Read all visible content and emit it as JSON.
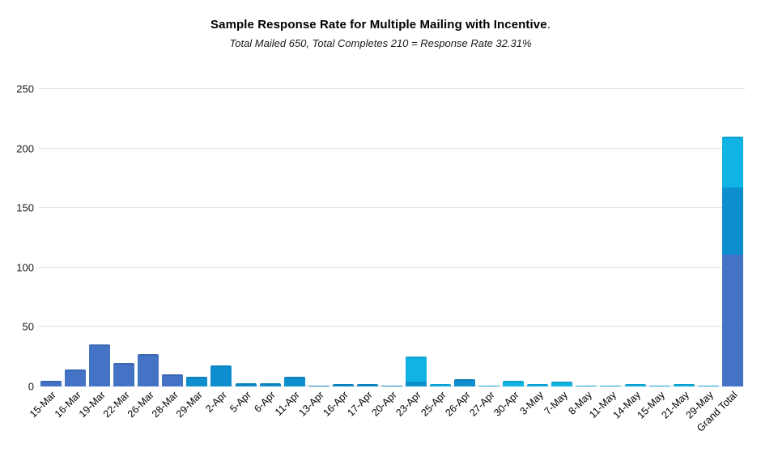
{
  "title": {
    "text": "Sample Response Rate for Multiple Mailing with Incentive",
    "period": "."
  },
  "subtitle": "Total Mailed 650, Total Completes 210 = Response Rate 32.31%",
  "chart_data": {
    "type": "bar",
    "stacked": true,
    "title": "Sample Response Rate for Multiple Mailing with Incentive.",
    "subtitle": "Total Mailed 650, Total Completes 210 = Response Rate 32.31%",
    "xlabel": "",
    "ylabel": "",
    "ylim": [
      0,
      250
    ],
    "yticks": [
      0,
      50,
      100,
      150,
      200,
      250
    ],
    "grid": "horizontal",
    "legend": "none",
    "colors": {
      "blue_dark": "#4472c4",
      "blue_mid": "#0d8ecf",
      "blue_light": "#0fb4e4"
    },
    "categories": [
      "15-Mar",
      "16-Mar",
      "19-Mar",
      "22-Mar",
      "26-Mar",
      "28-Mar",
      "29-Mar",
      "2-Apr",
      "5-Apr",
      "6-Apr",
      "11-Apr",
      "13-Apr",
      "16-Apr",
      "17-Apr",
      "20-Apr",
      "23-Apr",
      "25-Apr",
      "26-Apr",
      "27-Apr",
      "30-Apr",
      "3-May",
      "7-May",
      "8-May",
      "11-May",
      "14-May",
      "15-May",
      "21-May",
      "29-May",
      "Grand Total"
    ],
    "bars": [
      {
        "label": "15-Mar",
        "total": 5,
        "segments": [
          {
            "color": "blue_dark",
            "value": 5
          }
        ]
      },
      {
        "label": "16-Mar",
        "total": 14,
        "segments": [
          {
            "color": "blue_dark",
            "value": 14
          }
        ]
      },
      {
        "label": "19-Mar",
        "total": 35,
        "segments": [
          {
            "color": "blue_dark",
            "value": 35
          }
        ]
      },
      {
        "label": "22-Mar",
        "total": 20,
        "segments": [
          {
            "color": "blue_dark",
            "value": 20
          }
        ]
      },
      {
        "label": "26-Mar",
        "total": 27,
        "segments": [
          {
            "color": "blue_dark",
            "value": 27
          }
        ]
      },
      {
        "label": "28-Mar",
        "total": 10,
        "segments": [
          {
            "color": "blue_dark",
            "value": 10
          }
        ]
      },
      {
        "label": "29-Mar",
        "total": 8,
        "segments": [
          {
            "color": "blue_mid",
            "value": 8
          }
        ]
      },
      {
        "label": "2-Apr",
        "total": 18,
        "segments": [
          {
            "color": "blue_mid",
            "value": 18
          }
        ]
      },
      {
        "label": "5-Apr",
        "total": 3,
        "segments": [
          {
            "color": "blue_mid",
            "value": 3
          }
        ]
      },
      {
        "label": "6-Apr",
        "total": 3,
        "segments": [
          {
            "color": "blue_mid",
            "value": 3
          }
        ]
      },
      {
        "label": "11-Apr",
        "total": 8,
        "segments": [
          {
            "color": "blue_mid",
            "value": 8
          }
        ]
      },
      {
        "label": "13-Apr",
        "total": 1,
        "segments": [
          {
            "color": "blue_mid",
            "value": 1
          }
        ]
      },
      {
        "label": "16-Apr",
        "total": 2,
        "segments": [
          {
            "color": "blue_mid",
            "value": 2
          }
        ]
      },
      {
        "label": "17-Apr",
        "total": 2,
        "segments": [
          {
            "color": "blue_mid",
            "value": 2
          }
        ]
      },
      {
        "label": "20-Apr",
        "total": 1,
        "segments": [
          {
            "color": "blue_mid",
            "value": 1
          }
        ]
      },
      {
        "label": "23-Apr",
        "total": 25,
        "segments": [
          {
            "color": "blue_mid",
            "value": 4
          },
          {
            "color": "blue_light",
            "value": 21
          }
        ]
      },
      {
        "label": "25-Apr",
        "total": 2,
        "segments": [
          {
            "color": "blue_light",
            "value": 2
          }
        ]
      },
      {
        "label": "26-Apr",
        "total": 6,
        "segments": [
          {
            "color": "blue_mid",
            "value": 6
          }
        ]
      },
      {
        "label": "27-Apr",
        "total": 1,
        "segments": [
          {
            "color": "blue_light",
            "value": 1
          }
        ]
      },
      {
        "label": "30-Apr",
        "total": 5,
        "segments": [
          {
            "color": "blue_light",
            "value": 5
          }
        ]
      },
      {
        "label": "3-May",
        "total": 2,
        "segments": [
          {
            "color": "blue_light",
            "value": 2
          }
        ]
      },
      {
        "label": "7-May",
        "total": 4,
        "segments": [
          {
            "color": "blue_light",
            "value": 4
          }
        ]
      },
      {
        "label": "8-May",
        "total": 1,
        "segments": [
          {
            "color": "blue_light",
            "value": 1
          }
        ]
      },
      {
        "label": "11-May",
        "total": 1,
        "segments": [
          {
            "color": "blue_light",
            "value": 1
          }
        ]
      },
      {
        "label": "14-May",
        "total": 2,
        "segments": [
          {
            "color": "blue_light",
            "value": 2
          }
        ]
      },
      {
        "label": "15-May",
        "total": 1,
        "segments": [
          {
            "color": "blue_light",
            "value": 1
          }
        ]
      },
      {
        "label": "21-May",
        "total": 2,
        "segments": [
          {
            "color": "blue_light",
            "value": 2
          }
        ]
      },
      {
        "label": "29-May",
        "total": 1,
        "segments": [
          {
            "color": "blue_light",
            "value": 1
          }
        ]
      },
      {
        "label": "Grand Total",
        "total": 210,
        "segments": [
          {
            "color": "blue_dark",
            "value": 111
          },
          {
            "color": "blue_mid",
            "value": 56
          },
          {
            "color": "blue_light",
            "value": 43
          }
        ]
      }
    ]
  }
}
